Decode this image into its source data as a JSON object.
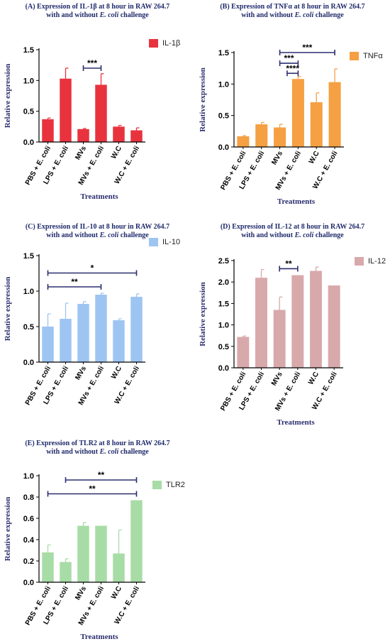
{
  "charts": [
    {
      "id": "A",
      "title_l1": "(A) Expression of IL-1β at 8 hour  in RAW 264.7",
      "title_l2a": "with and without ",
      "title_l2b": "E. coli",
      "title_l2c": " challenge",
      "color": "#e8333f",
      "chart_data": {
        "type": "bar",
        "categories": [
          "PBS + E. coli",
          "LPS + E. coli",
          "MVs",
          "MVs + E. coli",
          "W.C",
          "W.C + E. coli"
        ],
        "series": [
          {
            "name": "IL-1β",
            "values": [
              0.37,
              1.03,
              0.21,
              0.93,
              0.25,
              0.19
            ],
            "errors": [
              0.02,
              0.17,
              0.01,
              0.18,
              0.02,
              0.04
            ]
          }
        ],
        "xlabel": "Treatments",
        "ylabel": "Relative expression",
        "ylim": [
          0,
          1.5
        ],
        "yticks": [
          0.0,
          0.5,
          1.0,
          1.5
        ],
        "ytick_labels": [
          "0.0",
          "0.5",
          "1.0",
          "1.5"
        ],
        "legend": "top-right",
        "significance": [
          {
            "from": 2,
            "to": 3,
            "label": "***"
          }
        ]
      }
    },
    {
      "id": "B",
      "title_l1": "(B) Expression of TNFα at 8 hour  in RAW 264.7",
      "title_l2a": "with and without ",
      "title_l2b": "E. coli",
      "title_l2c": " challenge",
      "color": "#f5a043",
      "chart_data": {
        "type": "bar",
        "categories": [
          "PBS + E. coli",
          "LPS + E. coli",
          "MVs",
          "MVs + E. coli",
          "W.C",
          "W.C + E. coli"
        ],
        "series": [
          {
            "name": "TNFα",
            "values": [
              0.17,
              0.36,
              0.31,
              1.08,
              0.71,
              1.03
            ],
            "errors": [
              0.01,
              0.03,
              0.05,
              0.04,
              0.15,
              0.21
            ]
          }
        ],
        "xlabel": "Treatments",
        "ylabel": "Relative expression",
        "ylim": [
          0,
          1.5
        ],
        "yticks": [
          0.0,
          0.5,
          1.0,
          1.5
        ],
        "ytick_labels": [
          "0.0",
          "0.5",
          "1.0",
          "1.5"
        ],
        "legend": "top-right",
        "significance": [
          {
            "from": 2,
            "to": 5,
            "label": "***"
          },
          {
            "from": 2,
            "to": 3,
            "label": "***"
          },
          {
            "from": 2.5,
            "to": 3,
            "label": "****"
          }
        ]
      }
    },
    {
      "id": "C",
      "title_l1": "(C) Expression of IL-10 at 8 hour  in RAW 264.7",
      "title_l2a": "with and without ",
      "title_l2b": "E. coli",
      "title_l2c": " challenge",
      "color": "#9ec5f2",
      "chart_data": {
        "type": "bar",
        "categories": [
          "PBS + E. coli",
          "LPS + E. coli",
          "MVs",
          "MVs + E. coli",
          "W.C",
          "W.C + E. coli"
        ],
        "series": [
          {
            "name": "IL-10",
            "values": [
              0.5,
              0.61,
              0.82,
              0.95,
              0.59,
              0.92
            ],
            "errors": [
              0.18,
              0.22,
              0.03,
              0.02,
              0.02,
              0.04
            ]
          }
        ],
        "xlabel": "",
        "ylabel": "Relative expression",
        "ylim": [
          0,
          1.5
        ],
        "yticks": [
          0.0,
          0.5,
          1.0,
          1.5
        ],
        "ytick_labels": [
          "0.0",
          "0.5",
          "1.0",
          "1.5"
        ],
        "legend": "top-right",
        "significance": [
          {
            "from": 0,
            "to": 5,
            "label": "*"
          },
          {
            "from": 0,
            "to": 3,
            "label": "**"
          }
        ]
      }
    },
    {
      "id": "D",
      "title_l1": "(D) Expression of IL-12 at 8 hour  in RAW 264.7",
      "title_l2a": "with and without ",
      "title_l2b": "E. coli",
      "title_l2c": " challenge",
      "color": "#d8a9ab",
      "chart_data": {
        "type": "bar",
        "categories": [
          "PBS + E. coli",
          "LPS + E. coli",
          "MVs",
          "MVs + E. coli",
          "W.C",
          "W.C + E. coli"
        ],
        "series": [
          {
            "name": "IL-12",
            "values": [
              0.72,
              2.1,
              1.35,
              2.16,
              2.26,
              1.92
            ],
            "errors": [
              0.02,
              0.19,
              0.3,
              0.0,
              0.09,
              0.0
            ]
          }
        ],
        "xlabel": "Treatments",
        "ylabel": "Relative expression",
        "ylim": [
          0,
          2.5
        ],
        "yticks": [
          0.0,
          0.5,
          1.0,
          1.5,
          2.0,
          2.5
        ],
        "ytick_labels": [
          "0.0",
          "0.5",
          "1.0",
          "1.5",
          "2.0",
          "2.5"
        ],
        "legend": "top-right",
        "significance": [
          {
            "from": 2,
            "to": 3,
            "label": "**"
          }
        ]
      }
    },
    {
      "id": "E",
      "title_l1": "(E) Expression of TLR2 at 8 hour  in RAW 264.7",
      "title_l2a": "with and without ",
      "title_l2b": "E. coli",
      "title_l2c": " challenge",
      "color": "#a8dca6",
      "chart_data": {
        "type": "bar",
        "categories": [
          "PBS + E. coli",
          "LPS + E. coli",
          "MVs",
          "MVs + E. coli",
          "W.C",
          "W.C + E. coli"
        ],
        "series": [
          {
            "name": "TLR2",
            "values": [
              0.28,
              0.19,
              0.53,
              0.53,
              0.27,
              0.77
            ],
            "errors": [
              0.07,
              0.03,
              0.03,
              0.0,
              0.22,
              0.0
            ]
          }
        ],
        "xlabel": "Treatments",
        "ylabel": "Relative expression",
        "ylim": [
          0,
          1.0
        ],
        "yticks": [
          0.0,
          0.2,
          0.4,
          0.6,
          0.8,
          1.0
        ],
        "ytick_labels": [
          "0.0",
          "0.2",
          "0.4",
          "0.6",
          "0.8",
          "1.0"
        ],
        "legend": "top-right",
        "significance": [
          {
            "from": 1,
            "to": 5,
            "label": "**"
          },
          {
            "from": 0,
            "to": 5,
            "label": "**"
          }
        ]
      }
    }
  ]
}
